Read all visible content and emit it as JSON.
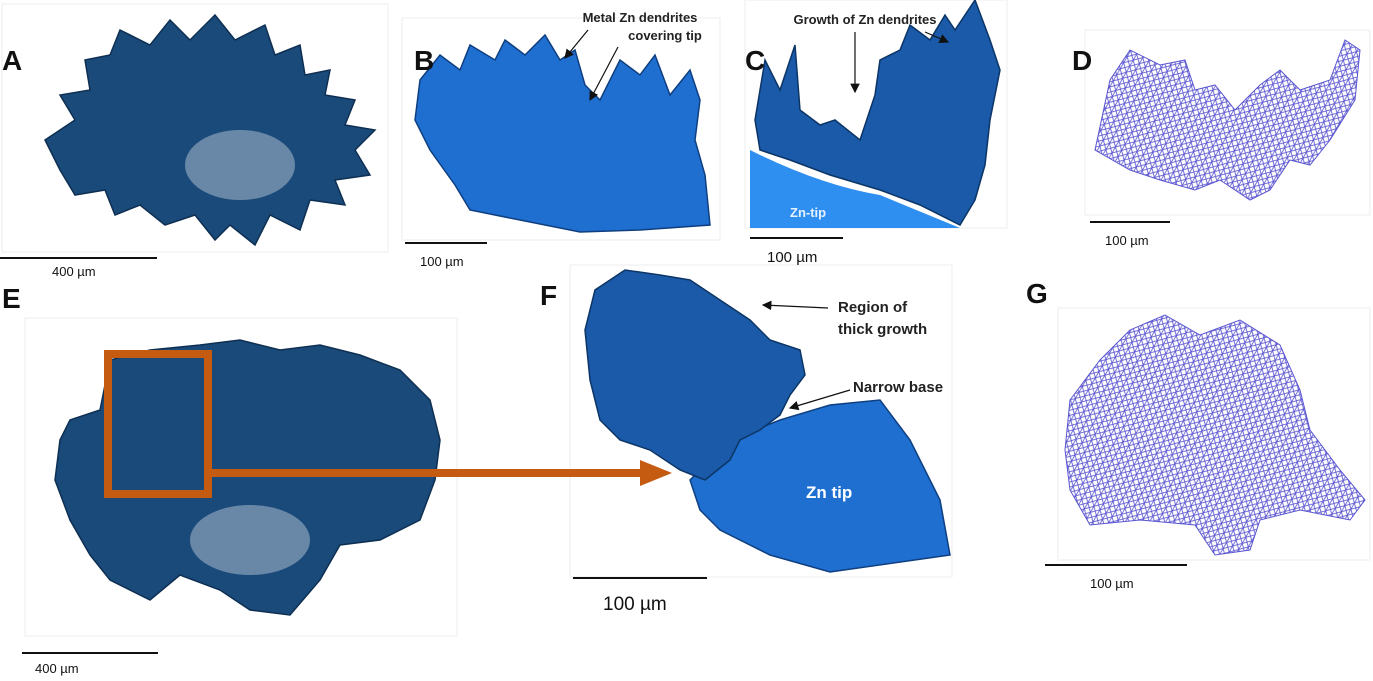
{
  "panels": [
    {
      "label": "A",
      "scale_bar": "400 µm"
    },
    {
      "label": "B",
      "scale_bar": "100 µm",
      "annotation": [
        "Metal Zn dendrites",
        "covering tip"
      ]
    },
    {
      "label": "C",
      "scale_bar": "100 µm",
      "annotation": [
        "Growth of Zn dendrites"
      ],
      "tip_label": "Zn-tip"
    },
    {
      "label": "D",
      "scale_bar": "100 µm"
    },
    {
      "label": "E",
      "scale_bar": "400 µm"
    },
    {
      "label": "F",
      "scale_bar": "100 µm",
      "annotation_1": [
        "Region of",
        "thick growth"
      ],
      "annotation_2": [
        "Narrow base"
      ],
      "tip_label": "Zn tip"
    },
    {
      "label": "G",
      "scale_bar": "100 µm"
    }
  ]
}
